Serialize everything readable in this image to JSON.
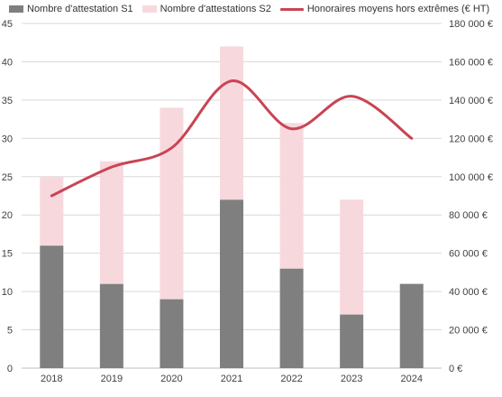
{
  "chart_data": {
    "type": "bar",
    "stacked": true,
    "categories": [
      "2018",
      "2019",
      "2020",
      "2021",
      "2022",
      "2023",
      "2024"
    ],
    "series": [
      {
        "name": "Nombre d'attestation S1",
        "type": "bar",
        "axis": "left",
        "values": [
          16,
          11,
          9,
          22,
          13,
          7,
          11
        ],
        "color": "#7f7f7f"
      },
      {
        "name": "Nombre d'attestations S2",
        "type": "bar",
        "axis": "left",
        "values": [
          9,
          16,
          25,
          20,
          19,
          15,
          0
        ],
        "color": "#f7d9dd"
      },
      {
        "name": "Honoraires moyens hors extrêmes (€ HT)",
        "type": "line",
        "axis": "right",
        "values": [
          90000,
          105000,
          115000,
          150000,
          125000,
          142000,
          120000
        ],
        "color": "#c94454",
        "smooth": true
      }
    ],
    "y_left": {
      "min": 0,
      "max": 45,
      "step": 5,
      "tick_labels": [
        "0",
        "5",
        "10",
        "15",
        "20",
        "25",
        "30",
        "35",
        "40",
        "45"
      ]
    },
    "y_right": {
      "min": 0,
      "max": 180000,
      "step": 20000,
      "tick_labels": [
        "0 €",
        "20 000 €",
        "40 000 €",
        "60 000 €",
        "80 000 €",
        "100 000 €",
        "120 000 €",
        "140 000 €",
        "160 000 €",
        "180 000 €"
      ]
    },
    "title": "",
    "xlabel": "",
    "ylabel": "",
    "grid": true,
    "legend": "top"
  }
}
